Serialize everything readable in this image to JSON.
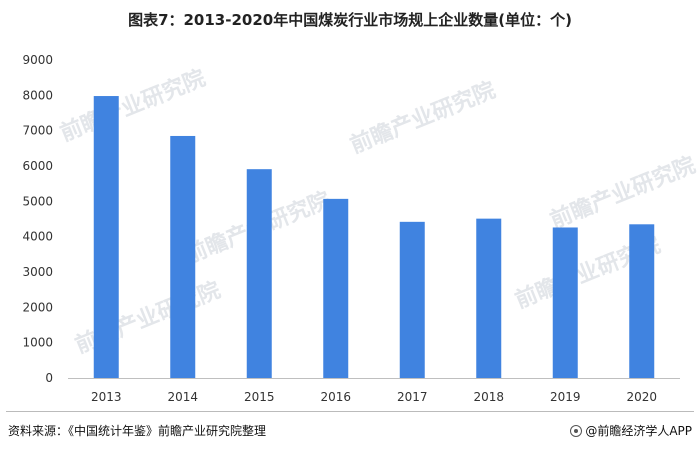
{
  "title": "图表7：2013-2020年中国煤炭行业市场规上企业数量(单位：个)",
  "source": "资料来源：《中国统计年鉴》前瞻产业研究院整理",
  "brand": "@前瞻经济学人APP",
  "watermark": "前瞻产业研究院",
  "colors": {
    "bar": "#4083E0",
    "axis": "#bfbfbf"
  },
  "chart_data": {
    "type": "bar",
    "title": "图表7：2013-2020年中国煤炭行业市场规上企业数量(单位：个)",
    "categories": [
      "2013",
      "2014",
      "2015",
      "2016",
      "2017",
      "2018",
      "2019",
      "2020"
    ],
    "values": [
      7980,
      6850,
      5910,
      5070,
      4420,
      4510,
      4260,
      4350
    ],
    "ylim": [
      0,
      9000
    ],
    "yticks": [
      "0",
      "1000",
      "2000",
      "3000",
      "4000",
      "5000",
      "6000",
      "7000",
      "8000",
      "9000"
    ],
    "grid": false,
    "xlabel": "",
    "ylabel": ""
  }
}
